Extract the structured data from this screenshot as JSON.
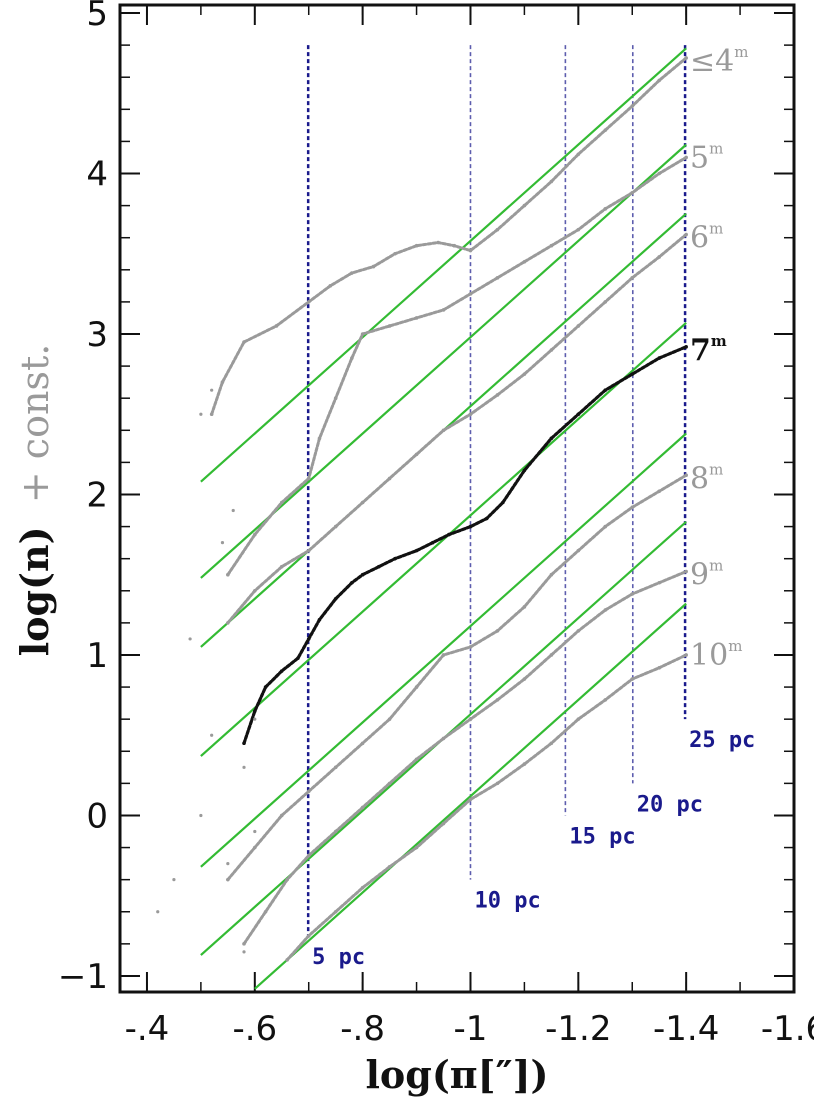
{
  "chart_data": {
    "type": "line",
    "title": "",
    "xlabel": "log(π[″])",
    "ylabel_main": "log(n)",
    "ylabel_extra": "+ const.",
    "xlim": [
      -0.35,
      -1.6
    ],
    "ylim": [
      -1.1,
      5.05
    ],
    "x_ticks": [
      -0.4,
      -0.6,
      -0.8,
      -1,
      -1.2,
      -1.4,
      -1.6
    ],
    "x_tick_labels": [
      "-.4",
      "-.6",
      "-.8",
      "-1",
      "-1.2",
      "-1.4",
      "-1.6"
    ],
    "y_ticks": [
      -1,
      0,
      1,
      2,
      3,
      4,
      5
    ],
    "y_tick_labels": [
      "−1",
      "0",
      "1",
      "2",
      "3",
      "4",
      "5"
    ],
    "distance_markers": [
      {
        "label": "5 pc",
        "x": -0.699,
        "y_top": 4.8,
        "y_bottom": -0.75
      },
      {
        "label": "10 pc",
        "x": -1.0,
        "y_top": 4.8,
        "y_bottom": -0.4
      },
      {
        "label": "15 pc",
        "x": -1.176,
        "y_top": 4.8,
        "y_bottom": 0.0
      },
      {
        "label": "20 pc",
        "x": -1.301,
        "y_top": 4.8,
        "y_bottom": 0.2
      },
      {
        "label": "25 pc",
        "x": -1.398,
        "y_top": 4.8,
        "y_bottom": 0.6
      }
    ],
    "series": [
      {
        "name": "≤4",
        "sup": "m",
        "color": "#9a9a9a",
        "label_y": 4.7,
        "fit": {
          "x": [
            -0.5,
            -1.4
          ],
          "y": [
            2.08,
            4.78
          ]
        },
        "data": {
          "x": [
            -0.52,
            -0.54,
            -0.58,
            -0.64,
            -0.7,
            -0.74,
            -0.78,
            -0.82,
            -0.86,
            -0.9,
            -0.94,
            -0.97,
            -1.0,
            -1.05,
            -1.1,
            -1.15,
            -1.2,
            -1.25,
            -1.3,
            -1.35,
            -1.4
          ],
          "y": [
            2.5,
            2.7,
            2.95,
            3.05,
            3.2,
            3.3,
            3.38,
            3.42,
            3.5,
            3.55,
            3.57,
            3.55,
            3.52,
            3.65,
            3.8,
            3.95,
            4.12,
            4.27,
            4.42,
            4.58,
            4.72
          ]
        }
      },
      {
        "name": "5",
        "sup": "m",
        "color": "#9a9a9a",
        "label_y": 4.1,
        "fit": {
          "x": [
            -0.5,
            -1.4
          ],
          "y": [
            1.48,
            4.18
          ]
        },
        "data": {
          "x": [
            -0.55,
            -0.6,
            -0.65,
            -0.7,
            -0.72,
            -0.75,
            -0.78,
            -0.8,
            -0.85,
            -0.9,
            -0.95,
            -1.0,
            -1.05,
            -1.1,
            -1.15,
            -1.2,
            -1.25,
            -1.3,
            -1.35,
            -1.4
          ],
          "y": [
            1.5,
            1.75,
            1.95,
            2.1,
            2.35,
            2.6,
            2.85,
            3.0,
            3.05,
            3.1,
            3.15,
            3.25,
            3.35,
            3.45,
            3.55,
            3.65,
            3.78,
            3.88,
            4.0,
            4.1
          ]
        }
      },
      {
        "name": "6",
        "sup": "m",
        "color": "#9a9a9a",
        "label_y": 3.6,
        "fit": {
          "x": [
            -0.5,
            -1.4
          ],
          "y": [
            1.05,
            3.75
          ]
        },
        "data": {
          "x": [
            -0.55,
            -0.6,
            -0.65,
            -0.7,
            -0.75,
            -0.8,
            -0.85,
            -0.9,
            -0.95,
            -1.0,
            -1.05,
            -1.1,
            -1.15,
            -1.2,
            -1.25,
            -1.3,
            -1.35,
            -1.4
          ],
          "y": [
            1.2,
            1.4,
            1.55,
            1.65,
            1.8,
            1.95,
            2.1,
            2.25,
            2.4,
            2.5,
            2.62,
            2.75,
            2.9,
            3.05,
            3.2,
            3.35,
            3.48,
            3.62
          ]
        }
      },
      {
        "name": "7",
        "sup": "m",
        "color": "#111111",
        "label_y": 2.9,
        "fit": {
          "x": [
            -0.5,
            -1.4
          ],
          "y": [
            0.37,
            3.07
          ]
        },
        "data": {
          "x": [
            -0.58,
            -0.6,
            -0.62,
            -0.65,
            -0.68,
            -0.7,
            -0.72,
            -0.75,
            -0.78,
            -0.8,
            -0.83,
            -0.86,
            -0.9,
            -0.93,
            -0.96,
            -1.0,
            -1.03,
            -1.06,
            -1.1,
            -1.15,
            -1.2,
            -1.25,
            -1.3,
            -1.35,
            -1.4
          ],
          "y": [
            0.45,
            0.65,
            0.8,
            0.9,
            0.98,
            1.1,
            1.22,
            1.35,
            1.45,
            1.5,
            1.55,
            1.6,
            1.65,
            1.7,
            1.75,
            1.8,
            1.85,
            1.95,
            2.15,
            2.35,
            2.5,
            2.65,
            2.75,
            2.85,
            2.92
          ]
        }
      },
      {
        "name": "8",
        "sup": "m",
        "color": "#9a9a9a",
        "label_y": 2.1,
        "fit": {
          "x": [
            -0.5,
            -1.4
          ],
          "y": [
            -0.32,
            2.38
          ]
        },
        "data": {
          "x": [
            -0.55,
            -0.6,
            -0.65,
            -0.7,
            -0.75,
            -0.8,
            -0.85,
            -0.9,
            -0.95,
            -1.0,
            -1.05,
            -1.1,
            -1.15,
            -1.2,
            -1.25,
            -1.3,
            -1.35,
            -1.4
          ],
          "y": [
            -0.4,
            -0.2,
            0.0,
            0.15,
            0.3,
            0.45,
            0.6,
            0.8,
            1.0,
            1.05,
            1.15,
            1.3,
            1.5,
            1.65,
            1.8,
            1.92,
            2.02,
            2.12
          ]
        }
      },
      {
        "name": "9",
        "sup": "m",
        "color": "#9a9a9a",
        "label_y": 1.5,
        "fit": {
          "x": [
            -0.5,
            -1.4
          ],
          "y": [
            -0.87,
            1.83
          ]
        },
        "data": {
          "x": [
            -0.58,
            -0.62,
            -0.66,
            -0.7,
            -0.75,
            -0.8,
            -0.85,
            -0.9,
            -0.95,
            -1.0,
            -1.05,
            -1.1,
            -1.15,
            -1.2,
            -1.25,
            -1.3,
            -1.35,
            -1.4
          ],
          "y": [
            -0.8,
            -0.6,
            -0.4,
            -0.25,
            -0.1,
            0.05,
            0.2,
            0.35,
            0.48,
            0.6,
            0.72,
            0.85,
            1.0,
            1.15,
            1.28,
            1.38,
            1.45,
            1.52
          ]
        }
      },
      {
        "name": "10",
        "sup": "m",
        "color": "#9a9a9a",
        "label_y": 1.0,
        "fit": {
          "x": [
            -0.6,
            -1.4
          ],
          "y": [
            -1.08,
            1.32
          ]
        },
        "data": {
          "x": [
            -0.66,
            -0.7,
            -0.75,
            -0.8,
            -0.85,
            -0.9,
            -0.95,
            -1.0,
            -1.05,
            -1.1,
            -1.15,
            -1.2,
            -1.25,
            -1.3,
            -1.35,
            -1.4
          ],
          "y": [
            -0.9,
            -0.75,
            -0.6,
            -0.45,
            -0.32,
            -0.2,
            -0.05,
            0.1,
            0.2,
            0.32,
            0.45,
            0.6,
            0.72,
            0.85,
            0.92,
            1.0
          ]
        }
      }
    ],
    "scatter_points": {
      "x": [
        -0.5,
        -0.52,
        -0.54,
        -0.56,
        -0.58,
        -0.6,
        -0.6,
        -0.42,
        -0.45,
        -0.48,
        -0.5,
        -0.52,
        -0.55,
        -0.58
      ],
      "y": [
        2.5,
        2.65,
        1.7,
        1.9,
        0.3,
        0.6,
        -0.1,
        -0.6,
        -0.4,
        1.1,
        0.0,
        0.5,
        -0.3,
        -0.85
      ]
    },
    "fit_color": "#33bb33",
    "marker_color": "#1a1a8c",
    "grid": false,
    "legend": "none"
  }
}
